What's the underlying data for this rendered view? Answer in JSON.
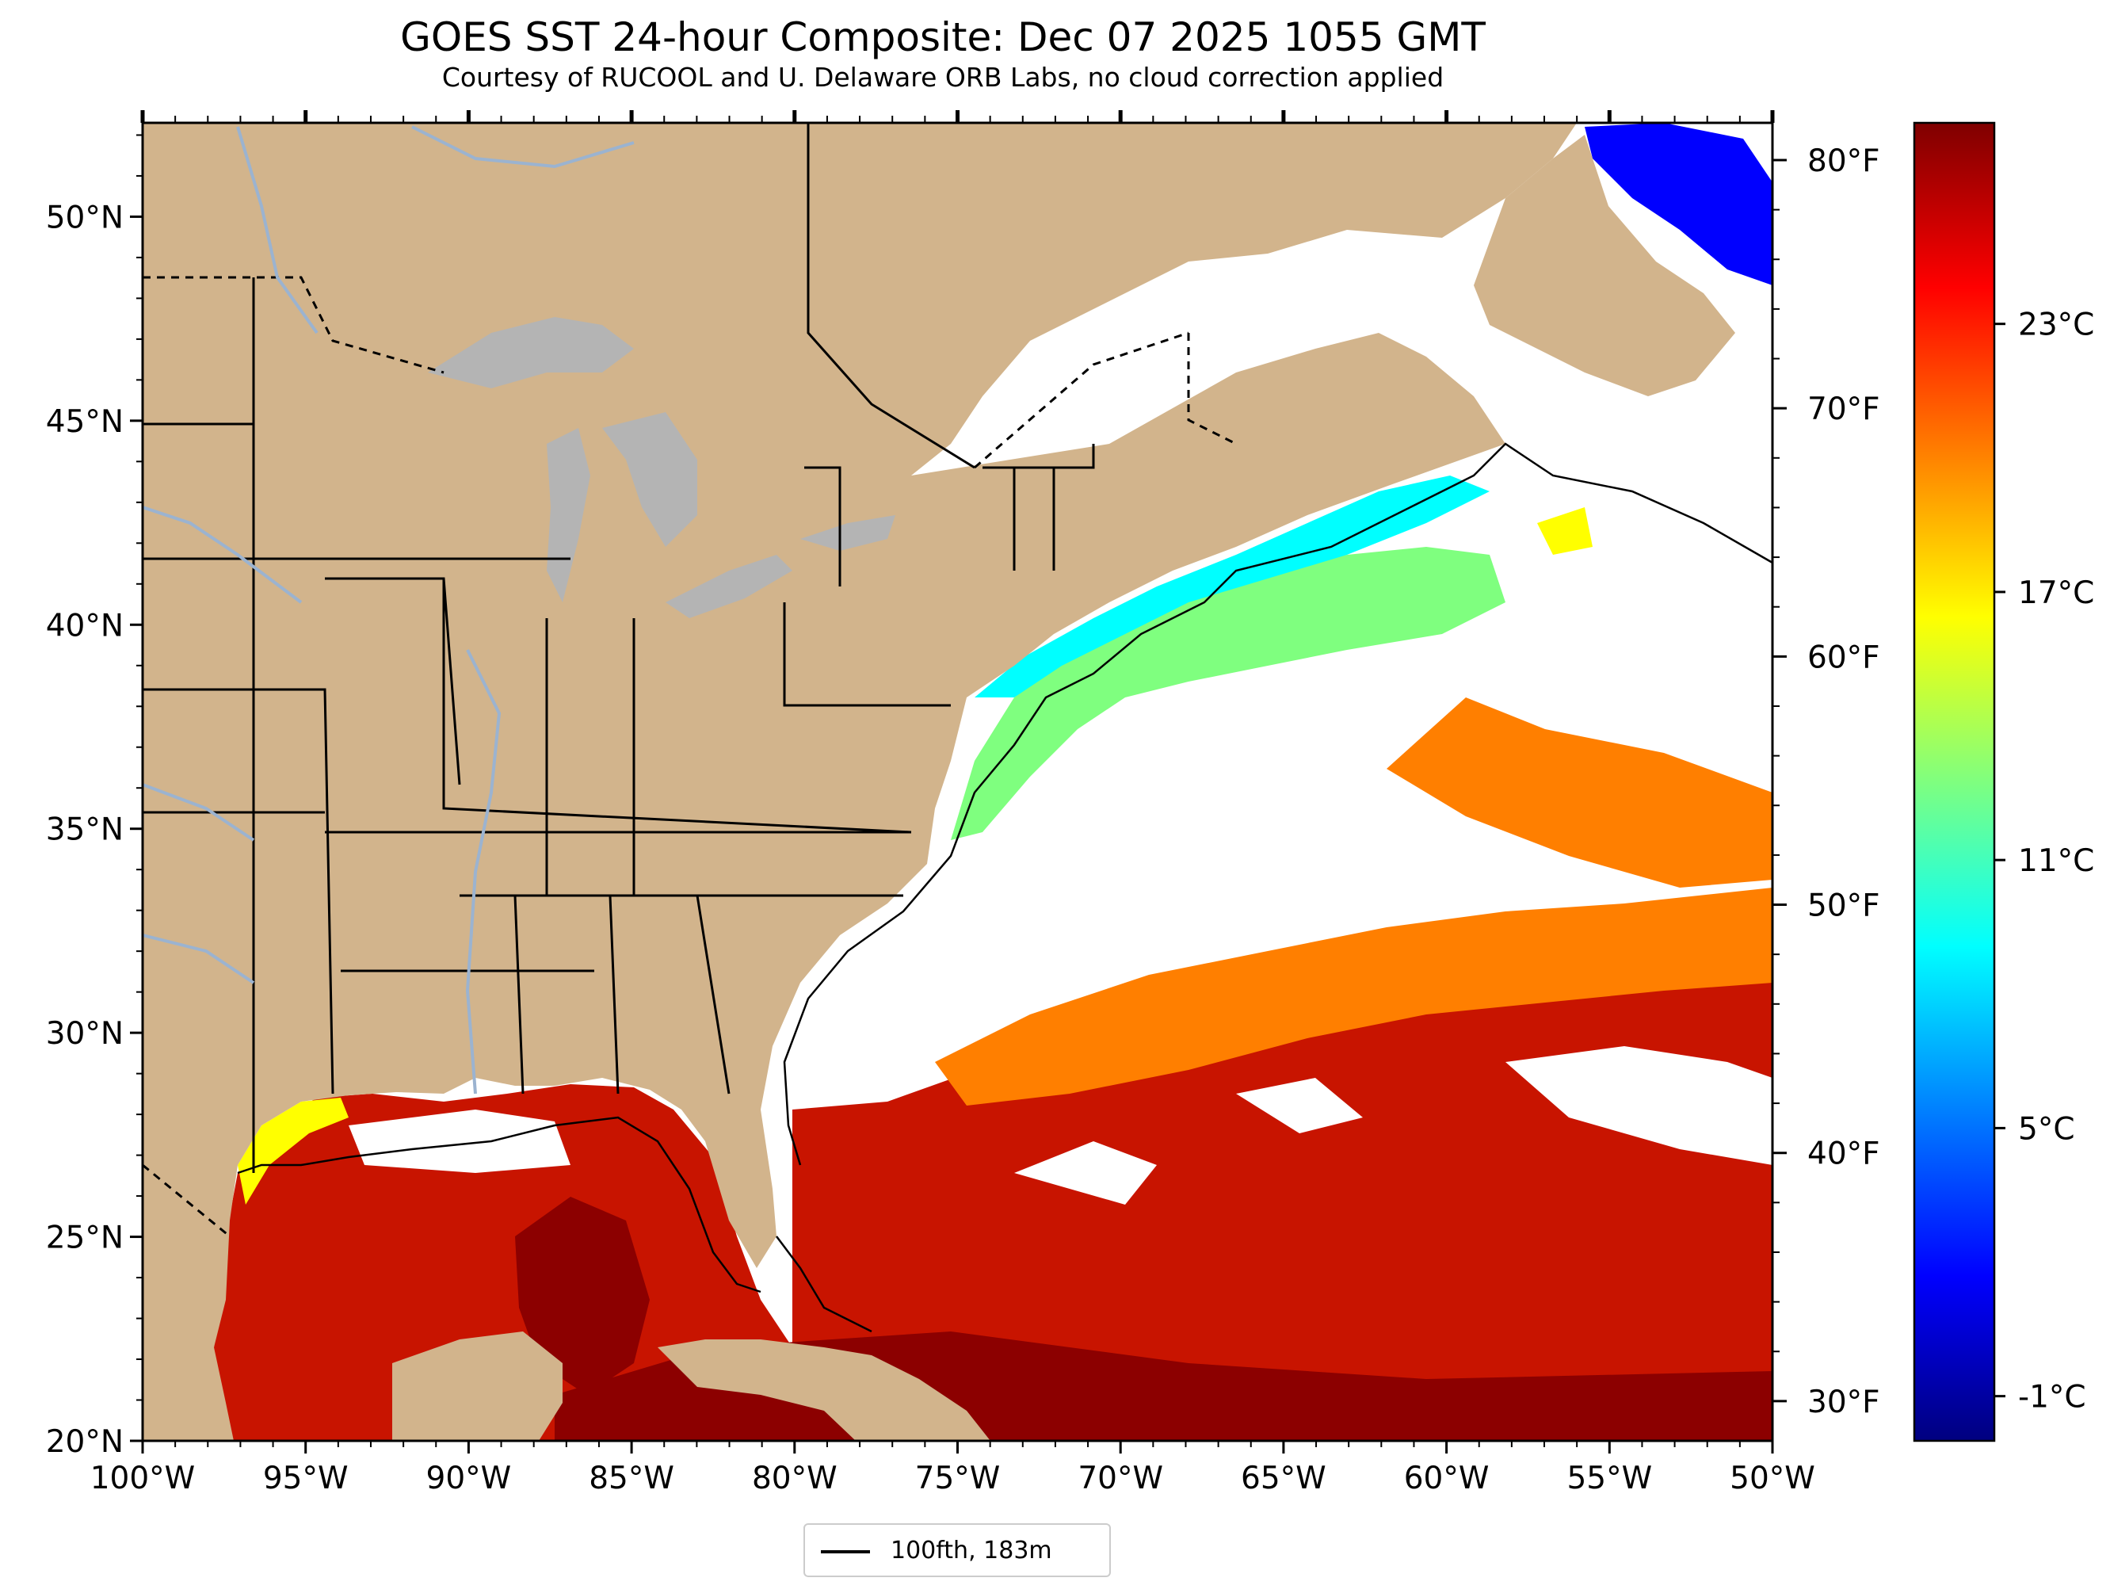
{
  "header": {
    "title": "GOES SST 24-hour Composite: Dec 07 2025 1055 GMT",
    "subtitle": "Courtesy of RUCOOL and U. Delaware ORB Labs, no cloud correction applied"
  },
  "map": {
    "lon_range": [
      -100,
      -50
    ],
    "lat_range": [
      20,
      52.3
    ],
    "lon_ticks": [
      {
        "value": -100,
        "label": "100°W"
      },
      {
        "value": -95,
        "label": "95°W"
      },
      {
        "value": -90,
        "label": "90°W"
      },
      {
        "value": -85,
        "label": "85°W"
      },
      {
        "value": -80,
        "label": "80°W"
      },
      {
        "value": -75,
        "label": "75°W"
      },
      {
        "value": -70,
        "label": "70°W"
      },
      {
        "value": -65,
        "label": "65°W"
      },
      {
        "value": -60,
        "label": "60°W"
      },
      {
        "value": -55,
        "label": "55°W"
      },
      {
        "value": -50,
        "label": "50°W"
      }
    ],
    "lat_ticks": [
      {
        "value": 20,
        "label": "20°N"
      },
      {
        "value": 25,
        "label": "25°N"
      },
      {
        "value": 30,
        "label": "30°N"
      },
      {
        "value": 35,
        "label": "35°N"
      },
      {
        "value": 40,
        "label": "40°N"
      },
      {
        "value": 45,
        "label": "45°N"
      },
      {
        "value": 50,
        "label": "50°N"
      }
    ],
    "fahrenheit_ticks": [
      {
        "value": 30,
        "label": "30°F"
      },
      {
        "value": 40,
        "label": "40°F"
      },
      {
        "value": 50,
        "label": "50°F"
      },
      {
        "value": 60,
        "label": "60°F"
      },
      {
        "value": 70,
        "label": "70°F"
      },
      {
        "value": 80,
        "label": "80°F"
      }
    ],
    "colors": {
      "land": "#d2b48c",
      "lakes": "#b4b4b4",
      "rivers": "#9bb3d0",
      "cloud": "#ffffff",
      "sst_warm": "#c81400",
      "sst_hot": "#8c0000"
    }
  },
  "colorbar": {
    "min_c": -2,
    "max_c": 27.5,
    "ticks": [
      {
        "value": -1,
        "label": "-1°C"
      },
      {
        "value": 5,
        "label": "5°C"
      },
      {
        "value": 11,
        "label": "11°C"
      },
      {
        "value": 17,
        "label": "17°C"
      },
      {
        "value": 23,
        "label": "23°C"
      }
    ],
    "colormap": [
      "#00007f",
      "#0000ff",
      "#007fff",
      "#00ffff",
      "#7fff7f",
      "#ffff00",
      "#ff7f00",
      "#ff0000",
      "#7f0000"
    ]
  },
  "legend": {
    "label": "100fth, 183m"
  }
}
